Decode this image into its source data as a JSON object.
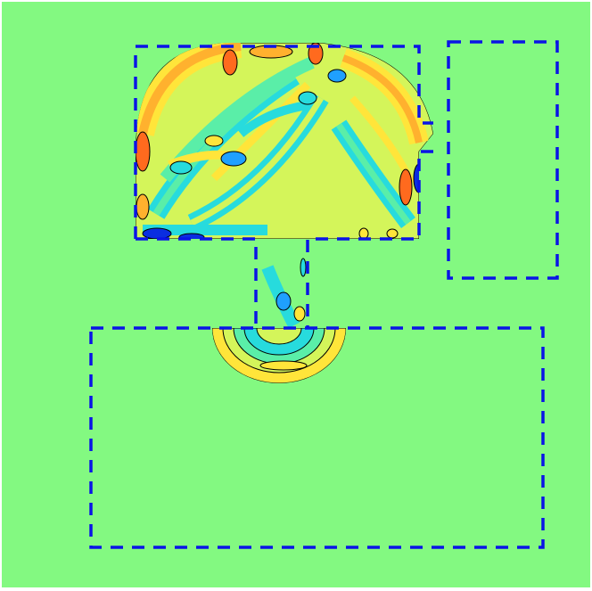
{
  "figure": {
    "background_color": "#83f981",
    "frame_color": "#ffffff",
    "dashed_outline_color": "#0a14e6",
    "contour_line_color": "#000000",
    "colormap": [
      "#0a2ee0",
      "#1fa0ff",
      "#27dbdd",
      "#5aeea8",
      "#83f981",
      "#d4f55a",
      "#ffe53a",
      "#ffb12e",
      "#ff6a1e",
      "#d81a10"
    ],
    "visible_text": []
  }
}
